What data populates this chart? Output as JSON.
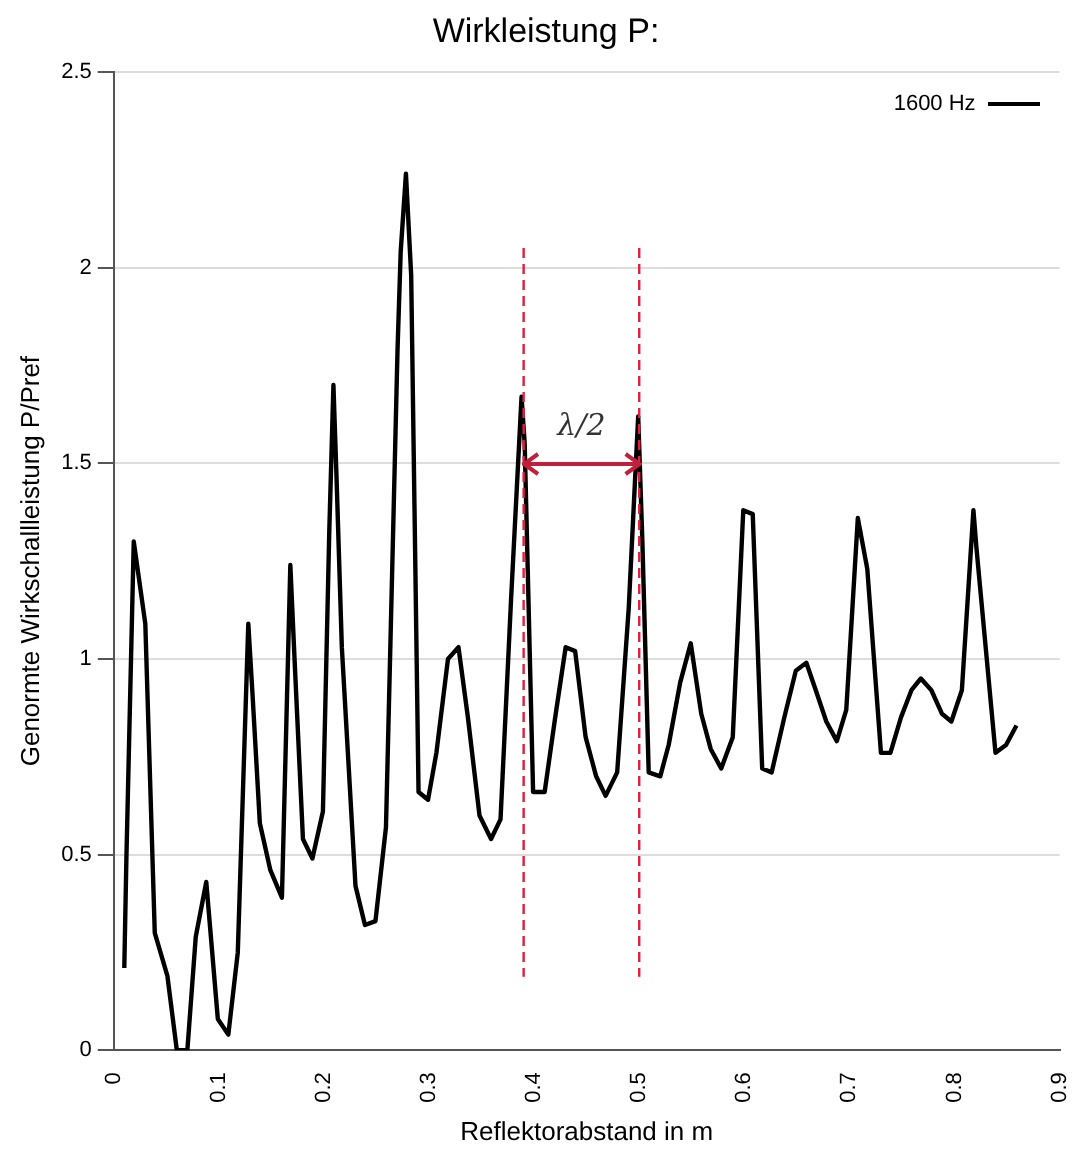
{
  "chart_data": {
    "type": "line",
    "title": "Wirkleistung P:",
    "xlabel": "Reflektorabstand in m",
    "ylabel": "Genormte Wirkschallleistung P/Pref",
    "x": [
      0.01,
      0.012,
      0.019,
      0.03,
      0.039,
      0.051,
      0.06,
      0.07,
      0.078,
      0.088,
      0.099,
      0.109,
      0.118,
      0.128,
      0.132,
      0.139,
      0.149,
      0.16,
      0.168,
      0.172,
      0.18,
      0.189,
      0.199,
      0.205,
      0.209,
      0.212,
      0.217,
      0.23,
      0.239,
      0.249,
      0.259,
      0.27,
      0.273,
      0.278,
      0.283,
      0.29,
      0.299,
      0.307,
      0.318,
      0.328,
      0.337,
      0.348,
      0.359,
      0.368,
      0.378,
      0.388,
      0.391,
      0.399,
      0.41,
      0.42,
      0.43,
      0.439,
      0.449,
      0.459,
      0.468,
      0.479,
      0.49,
      0.499,
      0.503,
      0.509,
      0.52,
      0.528,
      0.539,
      0.549,
      0.559,
      0.568,
      0.578,
      0.589,
      0.599,
      0.608,
      0.617,
      0.626,
      0.638,
      0.649,
      0.659,
      0.668,
      0.678,
      0.688,
      0.697,
      0.708,
      0.717,
      0.73,
      0.739,
      0.749,
      0.759,
      0.768,
      0.778,
      0.788,
      0.797,
      0.807,
      0.818,
      0.821,
      0.839,
      0.849,
      0.859
    ],
    "series": [
      {
        "name": "1600 Hz",
        "color": "#000000",
        "values": [
          0.21,
          0.49,
          1.3,
          1.09,
          0.3,
          0.19,
          0.0,
          0.0,
          0.29,
          0.43,
          0.08,
          0.04,
          0.25,
          1.09,
          0.91,
          0.58,
          0.46,
          0.39,
          1.24,
          1.0,
          0.54,
          0.49,
          0.61,
          1.32,
          1.7,
          1.46,
          1.03,
          0.42,
          0.32,
          0.33,
          0.57,
          1.79,
          2.04,
          2.24,
          1.98,
          0.66,
          0.64,
          0.76,
          1.0,
          1.03,
          0.85,
          0.6,
          0.54,
          0.59,
          1.15,
          1.67,
          1.55,
          0.66,
          0.66,
          0.85,
          1.03,
          1.02,
          0.8,
          0.7,
          0.65,
          0.71,
          1.13,
          1.62,
          1.3,
          0.71,
          0.7,
          0.78,
          0.94,
          1.04,
          0.86,
          0.77,
          0.72,
          0.8,
          1.38,
          1.37,
          0.72,
          0.71,
          0.85,
          0.97,
          0.99,
          0.92,
          0.84,
          0.79,
          0.87,
          1.36,
          1.23,
          0.76,
          0.76,
          0.85,
          0.92,
          0.95,
          0.92,
          0.86,
          0.84,
          0.92,
          1.38,
          1.28,
          0.76,
          0.78,
          0.83
        ]
      }
    ],
    "xlim": [
      0,
      0.9
    ],
    "xticks": [
      0,
      0.1,
      0.2,
      0.3,
      0.4,
      0.5,
      0.6,
      0.7,
      0.8,
      0.9
    ],
    "ylim": [
      0,
      2.5
    ],
    "yticks": [
      0,
      0.5,
      1,
      1.5,
      2,
      2.5
    ],
    "grid": "y",
    "legend": "top right",
    "marker": "none",
    "line_style": "solid",
    "ref_lines": [
      {
        "axis": "x",
        "value": 0.39,
        "color": "#e0203c",
        "line_style": "dashed"
      },
      {
        "axis": "x",
        "value": 0.5,
        "color": "#e0203c",
        "line_style": "dashed"
      }
    ],
    "annotations": [
      "λ/2"
    ]
  }
}
